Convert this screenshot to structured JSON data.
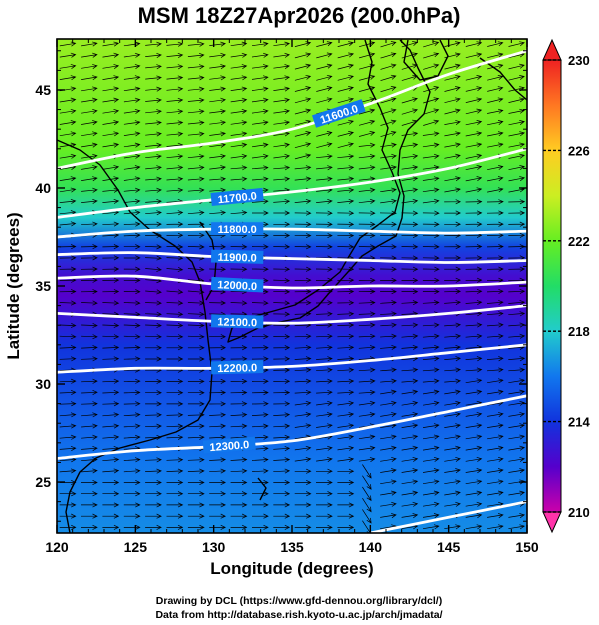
{
  "chart_data": {
    "type": "heatmap",
    "title": "MSM 18Z27Apr2026 (200.0hPa)",
    "xlabel": "Longitude (degrees)",
    "ylabel": "Latitude  (degrees)",
    "xlim": [
      120,
      150
    ],
    "ylim": [
      22.4,
      47.6
    ],
    "x_ticks": [
      "120",
      "125",
      "130",
      "135",
      "140",
      "145",
      "150"
    ],
    "y_ticks": [
      "25",
      "30",
      "35",
      "40",
      "45"
    ],
    "colorbar": {
      "range": [
        210,
        230
      ],
      "ticks": [
        "210",
        "214",
        "218",
        "222",
        "226",
        "230"
      ],
      "colors": [
        "#cc00aa",
        "#5500cc",
        "#1133dd",
        "#1177ee",
        "#22cccc",
        "#22dd66",
        "#66ee22",
        "#ccee22",
        "#ffcc22",
        "#ff7722",
        "#ee2222"
      ]
    },
    "temperature_bands": [
      {
        "lat": 22.4,
        "value": 216.5
      },
      {
        "lat": 26,
        "value": 216.0
      },
      {
        "lat": 29,
        "value": 215.0
      },
      {
        "lat": 32,
        "value": 214.0
      },
      {
        "lat": 34.5,
        "value": 212.0
      },
      {
        "lat": 35.5,
        "value": 212.5
      },
      {
        "lat": 37,
        "value": 214.5
      },
      {
        "lat": 38.5,
        "value": 218.0
      },
      {
        "lat": 40,
        "value": 220.5
      },
      {
        "lat": 42,
        "value": 222.0
      },
      {
        "lat": 45,
        "value": 222.5
      },
      {
        "lat": 47.6,
        "value": 223.0
      }
    ],
    "contours": [
      {
        "label": "11600.0",
        "label_lon": 138.0,
        "points": [
          [
            120,
            41.0
          ],
          [
            125,
            41.8
          ],
          [
            130,
            42.3
          ],
          [
            135,
            43.0
          ],
          [
            140,
            44.3
          ],
          [
            145,
            45.8
          ],
          [
            150,
            47.0
          ]
        ]
      },
      {
        "label": "11700.0",
        "label_lon": 131.5,
        "points": [
          [
            120,
            38.5
          ],
          [
            125,
            39.0
          ],
          [
            130,
            39.4
          ],
          [
            135,
            39.8
          ],
          [
            140,
            40.3
          ],
          [
            145,
            41.0
          ],
          [
            150,
            42.0
          ]
        ]
      },
      {
        "label": "11800.0",
        "label_lon": 131.5,
        "points": [
          [
            120,
            37.5
          ],
          [
            125,
            37.8
          ],
          [
            130,
            37.9
          ],
          [
            135,
            37.9
          ],
          [
            140,
            37.8
          ],
          [
            145,
            37.7
          ],
          [
            150,
            37.8
          ]
        ]
      },
      {
        "label": "11900.0",
        "label_lon": 131.5,
        "points": [
          [
            120,
            36.6
          ],
          [
            125,
            36.7
          ],
          [
            130,
            36.5
          ],
          [
            135,
            36.4
          ],
          [
            140,
            36.3
          ],
          [
            145,
            36.2
          ],
          [
            150,
            36.3
          ]
        ]
      },
      {
        "label": "12000.0",
        "label_lon": 131.5,
        "points": [
          [
            120,
            35.4
          ],
          [
            125,
            35.5
          ],
          [
            130,
            35.1
          ],
          [
            135,
            34.9
          ],
          [
            140,
            35.0
          ],
          [
            145,
            35.0
          ],
          [
            150,
            35.2
          ]
        ]
      },
      {
        "label": "12100.0",
        "label_lon": 131.5,
        "points": [
          [
            120,
            33.6
          ],
          [
            125,
            33.4
          ],
          [
            130,
            33.2
          ],
          [
            135,
            33.1
          ],
          [
            140,
            33.3
          ],
          [
            145,
            33.6
          ],
          [
            150,
            34.0
          ]
        ]
      },
      {
        "label": "12200.0",
        "label_lon": 131.5,
        "points": [
          [
            120,
            30.6
          ],
          [
            125,
            30.8
          ],
          [
            130,
            30.8
          ],
          [
            135,
            30.9
          ],
          [
            140,
            31.2
          ],
          [
            145,
            31.6
          ],
          [
            150,
            32.0
          ]
        ]
      },
      {
        "label": "12300.0",
        "label_lon": 131.0,
        "points": [
          [
            120,
            26.2
          ],
          [
            125,
            26.6
          ],
          [
            130,
            26.8
          ],
          [
            135,
            27.1
          ],
          [
            140,
            27.8
          ],
          [
            145,
            28.6
          ],
          [
            150,
            29.4
          ]
        ]
      },
      {
        "label": "",
        "label_lon": 0,
        "points": [
          [
            140,
            22.4
          ],
          [
            145,
            23.2
          ],
          [
            150,
            24.0
          ]
        ]
      }
    ],
    "credits": [
      "Drawing by DCL (https://www.gfd-dennou.org/library/dcl/)",
      "Data from http://database.rish.kyoto-u.ac.jp/arch/jmadata/"
    ]
  }
}
